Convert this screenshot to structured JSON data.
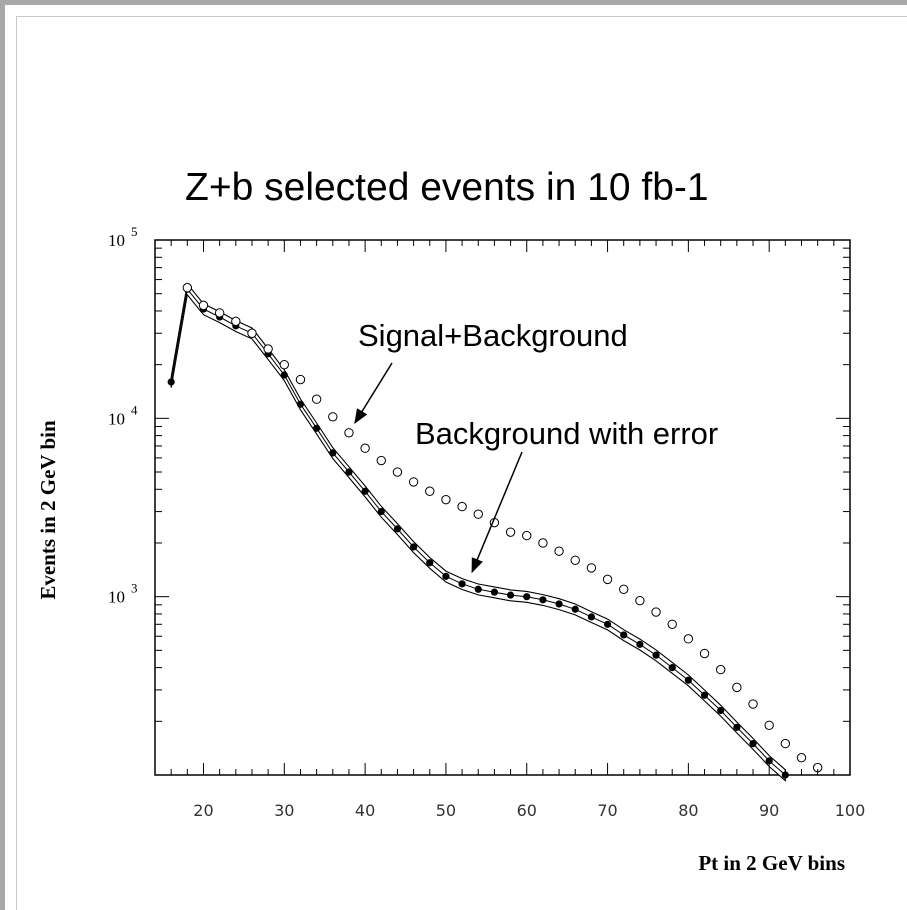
{
  "chart_data": {
    "type": "scatter",
    "title": "Z+b selected events in 10 fb-1",
    "xlabel": "Pt in 2 GeV bins",
    "ylabel": "Events in 2 GeV bin",
    "xlim": [
      14,
      100
    ],
    "ylim": [
      100,
      100000
    ],
    "yscale": "log",
    "x_ticks": [
      "20",
      "30",
      "40",
      "50",
      "60",
      "70",
      "80",
      "90",
      "100"
    ],
    "y_ticks": [
      {
        "base": "10",
        "exp": "3",
        "value": 1000
      },
      {
        "base": "10",
        "exp": "4",
        "value": 10000
      },
      {
        "base": "10",
        "exp": "5",
        "value": 100000
      }
    ],
    "grid": false,
    "annotations": [
      {
        "text": "Signal+Background",
        "points_to": [
          39,
          8300
        ]
      },
      {
        "text": "Background with error",
        "points_to": [
          53,
          1150
        ]
      }
    ],
    "series": [
      {
        "name": "Signal+Background",
        "marker": "open-circle",
        "x": [
          18,
          20,
          22,
          24,
          26,
          28,
          30,
          32,
          34,
          36,
          38,
          40,
          42,
          44,
          46,
          48,
          50,
          52,
          54,
          56,
          58,
          60,
          62,
          64,
          66,
          68,
          70,
          72,
          74,
          76,
          78,
          80,
          82,
          84,
          86,
          88,
          90,
          92,
          94,
          96
        ],
        "y": [
          54000,
          43000,
          39000,
          35000,
          30000,
          24500,
          20000,
          16500,
          12800,
          10200,
          8300,
          6800,
          5800,
          5000,
          4400,
          3900,
          3500,
          3200,
          2900,
          2600,
          2300,
          2200,
          2000,
          1800,
          1600,
          1450,
          1250,
          1100,
          950,
          820,
          700,
          580,
          480,
          390,
          310,
          250,
          190,
          150,
          125,
          110
        ]
      },
      {
        "name": "Background with error",
        "marker": "filled-circle",
        "x": [
          16,
          18,
          20,
          22,
          24,
          26,
          28,
          30,
          32,
          34,
          36,
          38,
          40,
          42,
          44,
          46,
          48,
          50,
          52,
          54,
          56,
          58,
          60,
          62,
          64,
          66,
          68,
          70,
          72,
          74,
          76,
          78,
          80,
          82,
          84,
          86,
          88,
          90,
          92
        ],
        "y": [
          16000,
          53000,
          41000,
          37000,
          33000,
          30000,
          23000,
          17500,
          12000,
          8800,
          6400,
          5000,
          3900,
          3000,
          2400,
          1900,
          1550,
          1300,
          1180,
          1100,
          1060,
          1020,
          1000,
          960,
          910,
          850,
          770,
          700,
          610,
          540,
          470,
          400,
          340,
          280,
          230,
          185,
          150,
          120,
          100
        ]
      }
    ]
  }
}
